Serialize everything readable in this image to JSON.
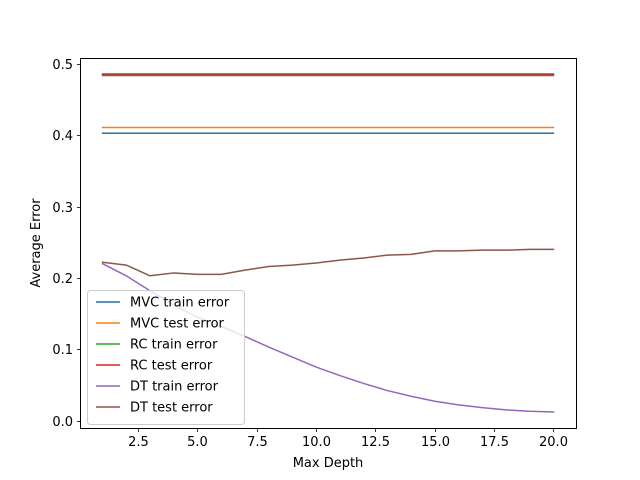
{
  "chart_data": {
    "type": "line",
    "title": "",
    "xlabel": "Max Depth",
    "ylabel": "Average Error",
    "xlim": [
      0.05,
      20.95
    ],
    "ylim": [
      -0.0105,
      0.5085
    ],
    "xticks": [
      2.5,
      5.0,
      7.5,
      10.0,
      12.5,
      15.0,
      17.5,
      20.0
    ],
    "xtick_labels": [
      "2.5",
      "5.0",
      "7.5",
      "10.0",
      "12.5",
      "15.0",
      "17.5",
      "20.0"
    ],
    "yticks": [
      0.0,
      0.1,
      0.2,
      0.3,
      0.4,
      0.5
    ],
    "ytick_labels": [
      "0.0",
      "0.1",
      "0.2",
      "0.3",
      "0.4",
      "0.5"
    ],
    "grid": false,
    "legend_position": "lower-left",
    "x": [
      1,
      2,
      3,
      4,
      5,
      6,
      7,
      8,
      9,
      10,
      11,
      12,
      13,
      14,
      15,
      16,
      17,
      18,
      19,
      20
    ],
    "series": [
      {
        "name": "MVC train error",
        "color": "#1f77b4",
        "values": [
          0.403,
          0.403,
          0.403,
          0.403,
          0.403,
          0.403,
          0.403,
          0.403,
          0.403,
          0.403,
          0.403,
          0.403,
          0.403,
          0.403,
          0.403,
          0.403,
          0.403,
          0.403,
          0.403,
          0.403
        ]
      },
      {
        "name": "MVC test error",
        "color": "#ff7f0e",
        "values": [
          0.411,
          0.411,
          0.411,
          0.411,
          0.411,
          0.411,
          0.411,
          0.411,
          0.411,
          0.411,
          0.411,
          0.411,
          0.411,
          0.411,
          0.411,
          0.411,
          0.411,
          0.411,
          0.411,
          0.411
        ]
      },
      {
        "name": "RC train error",
        "color": "#2ca02c",
        "values": [
          0.485,
          0.485,
          0.485,
          0.485,
          0.485,
          0.485,
          0.485,
          0.485,
          0.485,
          0.485,
          0.485,
          0.485,
          0.485,
          0.485,
          0.485,
          0.485,
          0.485,
          0.485,
          0.485,
          0.485
        ]
      },
      {
        "name": "RC test error",
        "color": "#d62728",
        "values": [
          0.486,
          0.486,
          0.486,
          0.486,
          0.486,
          0.486,
          0.486,
          0.486,
          0.486,
          0.486,
          0.486,
          0.486,
          0.486,
          0.486,
          0.486,
          0.486,
          0.486,
          0.486,
          0.486,
          0.486
        ]
      },
      {
        "name": "DT train error",
        "color": "#9467bd",
        "values": [
          0.22,
          0.203,
          0.182,
          0.162,
          0.145,
          0.132,
          0.118,
          0.103,
          0.089,
          0.075,
          0.063,
          0.052,
          0.042,
          0.034,
          0.027,
          0.022,
          0.018,
          0.015,
          0.013,
          0.012
        ]
      },
      {
        "name": "DT test error",
        "color": "#8c564b",
        "values": [
          0.222,
          0.218,
          0.203,
          0.207,
          0.205,
          0.205,
          0.211,
          0.216,
          0.218,
          0.221,
          0.225,
          0.228,
          0.232,
          0.233,
          0.238,
          0.238,
          0.239,
          0.239,
          0.24,
          0.24
        ]
      },
      {
        "name": "",
        "color": "#8c564b",
        "values": [
          0.484,
          0.484,
          0.484,
          0.484,
          0.484,
          0.484,
          0.484,
          0.484,
          0.484,
          0.484,
          0.484,
          0.484,
          0.484,
          0.484,
          0.484,
          0.484,
          0.484,
          0.484,
          0.484,
          0.484
        ]
      }
    ]
  }
}
